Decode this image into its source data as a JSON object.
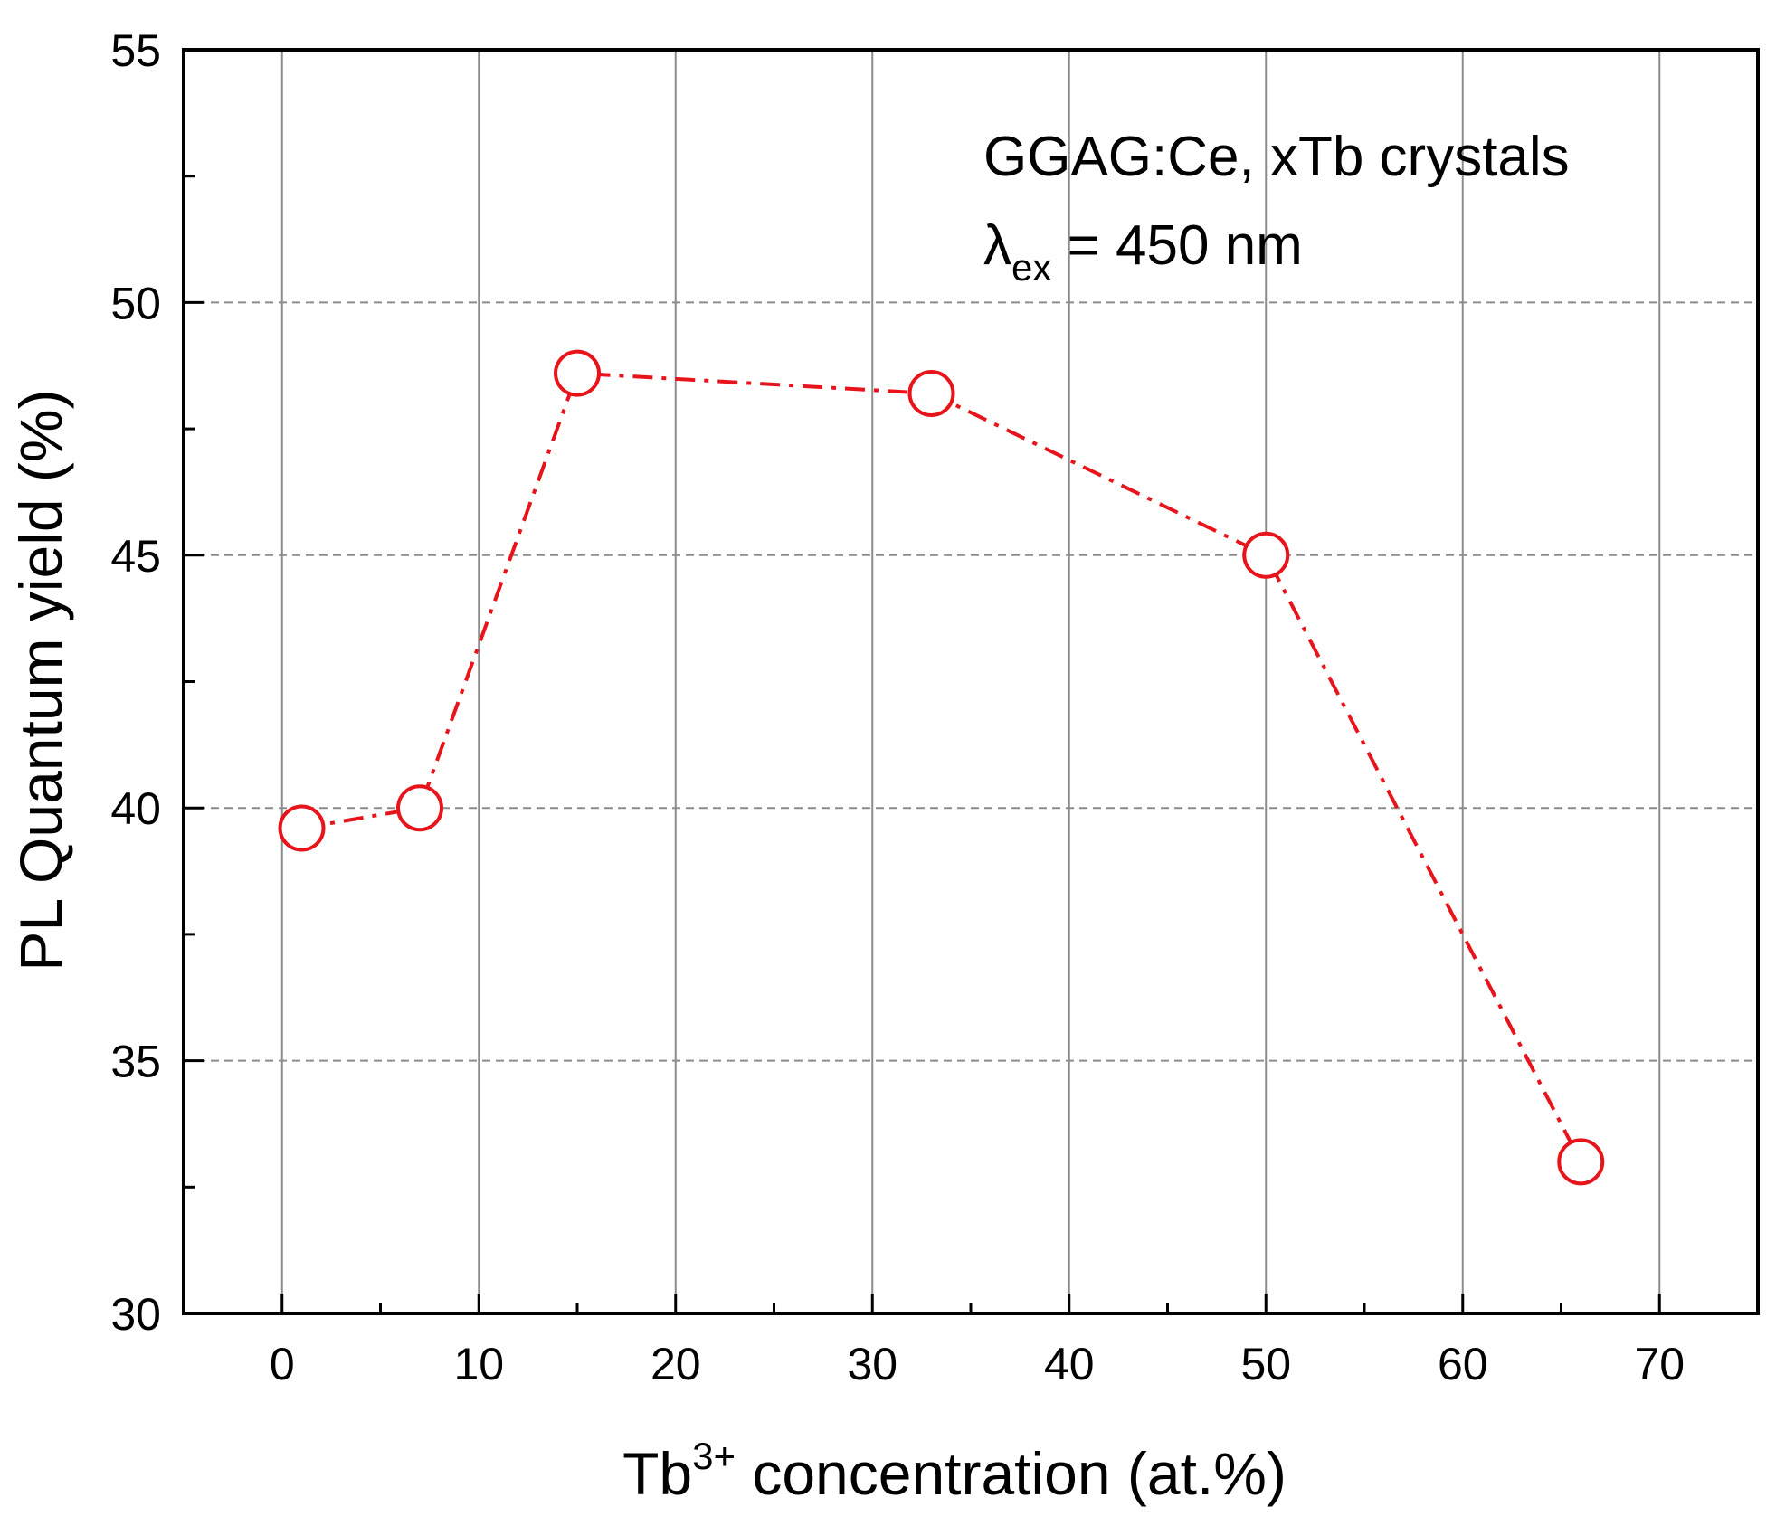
{
  "chart_data": {
    "type": "line",
    "xlabel_main": "Tb",
    "xlabel_sup": "3+",
    "xlabel_rest": " concentration (at.%)",
    "ylabel": "PL Quantum yield (%)",
    "annotation_line1": "GGAG:Ce, xTb crystals",
    "annotation_lambda": "λ",
    "annotation_sub": "ex",
    "annotation_rest": " = 450 nm",
    "xlim": [
      -5,
      75
    ],
    "ylim": [
      30,
      55
    ],
    "xticks": [
      0,
      10,
      20,
      30,
      40,
      50,
      60,
      70
    ],
    "yticks": [
      30,
      35,
      40,
      45,
      50,
      55
    ],
    "grid": true,
    "series": [
      {
        "color": "#e8141c",
        "line_style": "dash-dot",
        "marker": "open-circle",
        "x": [
          1,
          7,
          15,
          33,
          50,
          66
        ],
        "y": [
          39.6,
          40.0,
          48.6,
          48.2,
          45.0,
          33.0
        ]
      }
    ]
  }
}
